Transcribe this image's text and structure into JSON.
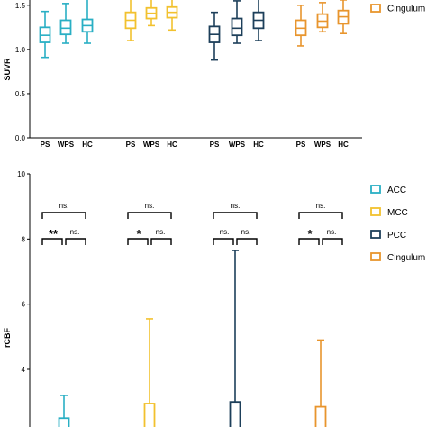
{
  "colors": {
    "ACC": "#29afc4",
    "MCC": "#f2c12e",
    "PCC": "#1d3f5a",
    "Cingulum": "#e8952d"
  },
  "chart_data": [
    {
      "type": "box",
      "ylabel": "SUVR",
      "ylim": [
        0.0,
        1.6
      ],
      "yticks": [
        "0.0",
        "0.5",
        "1.0",
        "1.5"
      ],
      "group_labels": [
        "PS",
        "WPS",
        "HC"
      ],
      "legend": [
        "Cingulum"
      ],
      "series": [
        {
          "name": "ACC",
          "boxes": [
            {
              "group": "PS",
              "min": 0.91,
              "q1": 1.08,
              "median": 1.16,
              "q3": 1.25,
              "max": 1.43
            },
            {
              "group": "WPS",
              "min": 1.07,
              "q1": 1.17,
              "median": 1.24,
              "q3": 1.33,
              "max": 1.52
            },
            {
              "group": "HC",
              "min": 1.07,
              "q1": 1.2,
              "median": 1.27,
              "q3": 1.34,
              "max": 1.58
            }
          ]
        },
        {
          "name": "MCC",
          "boxes": [
            {
              "group": "PS",
              "min": 1.1,
              "q1": 1.24,
              "median": 1.33,
              "q3": 1.42,
              "max": 1.6
            },
            {
              "group": "WPS",
              "min": 1.27,
              "q1": 1.35,
              "median": 1.41,
              "q3": 1.47,
              "max": 1.6
            },
            {
              "group": "HC",
              "min": 1.22,
              "q1": 1.36,
              "median": 1.42,
              "q3": 1.48,
              "max": 1.6
            }
          ]
        },
        {
          "name": "PCC",
          "boxes": [
            {
              "group": "PS",
              "min": 0.88,
              "q1": 1.08,
              "median": 1.17,
              "q3": 1.26,
              "max": 1.42
            },
            {
              "group": "WPS",
              "min": 1.07,
              "q1": 1.16,
              "median": 1.24,
              "q3": 1.35,
              "max": 1.55
            },
            {
              "group": "HC",
              "min": 1.1,
              "q1": 1.24,
              "median": 1.33,
              "q3": 1.42,
              "max": 1.6
            }
          ]
        },
        {
          "name": "Cingulum",
          "boxes": [
            {
              "group": "PS",
              "min": 1.04,
              "q1": 1.16,
              "median": 1.24,
              "q3": 1.33,
              "max": 1.5
            },
            {
              "group": "WPS",
              "min": 1.2,
              "q1": 1.25,
              "median": 1.32,
              "q3": 1.4,
              "max": 1.53
            },
            {
              "group": "HC",
              "min": 1.18,
              "q1": 1.29,
              "median": 1.37,
              "q3": 1.44,
              "max": 1.56
            }
          ]
        }
      ]
    },
    {
      "type": "box",
      "ylabel": "rCBF",
      "ylim": [
        2.8,
        10
      ],
      "yticks": [
        "4",
        "6",
        "8",
        "10"
      ],
      "legend": [
        "ACC",
        "MCC",
        "PCC",
        "Cingulum"
      ],
      "series": [
        {
          "name": "ACC",
          "box_top": 2.5,
          "whisker_max": 3.2,
          "significance": {
            "overall": "ns.",
            "left": "**",
            "right": "ns."
          }
        },
        {
          "name": "MCC",
          "box_top": 2.95,
          "whisker_max": 5.55,
          "significance": {
            "overall": "ns.",
            "left": "*",
            "right": "ns."
          }
        },
        {
          "name": "PCC",
          "box_top": 3.0,
          "whisker_max": 7.65,
          "significance": {
            "overall": "ns.",
            "left": "ns.",
            "right": "ns."
          }
        },
        {
          "name": "Cingulum",
          "box_top": 2.85,
          "whisker_max": 4.9,
          "significance": {
            "overall": "ns.",
            "left": "*",
            "right": "ns."
          }
        }
      ]
    }
  ]
}
